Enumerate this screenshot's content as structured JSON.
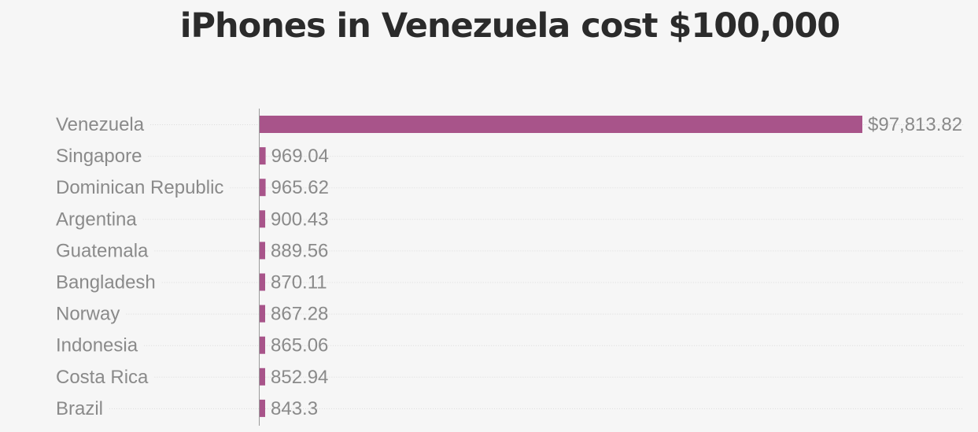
{
  "chart_data": {
    "type": "bar",
    "orientation": "horizontal",
    "title": "iPhones in Venezuela cost $100,000",
    "categories": [
      "Venezuela",
      "Singapore",
      "Dominican Republic",
      "Argentina",
      "Guatemala",
      "Bangladesh",
      "Norway",
      "Indonesia",
      "Costa Rica",
      "Brazil"
    ],
    "values": [
      97813.82,
      969.04,
      965.62,
      900.43,
      889.56,
      870.11,
      867.28,
      865.06,
      852.94,
      843.3
    ],
    "value_labels": [
      "$97,813.82",
      "969.04",
      "965.62",
      "900.43",
      "889.56",
      "870.11",
      "867.28",
      "865.06",
      "852.94",
      "843.3"
    ],
    "xlabel": "",
    "ylabel": "",
    "xlim": [
      0,
      97813.82
    ],
    "grid": true,
    "bar_color": "#a8548a"
  }
}
